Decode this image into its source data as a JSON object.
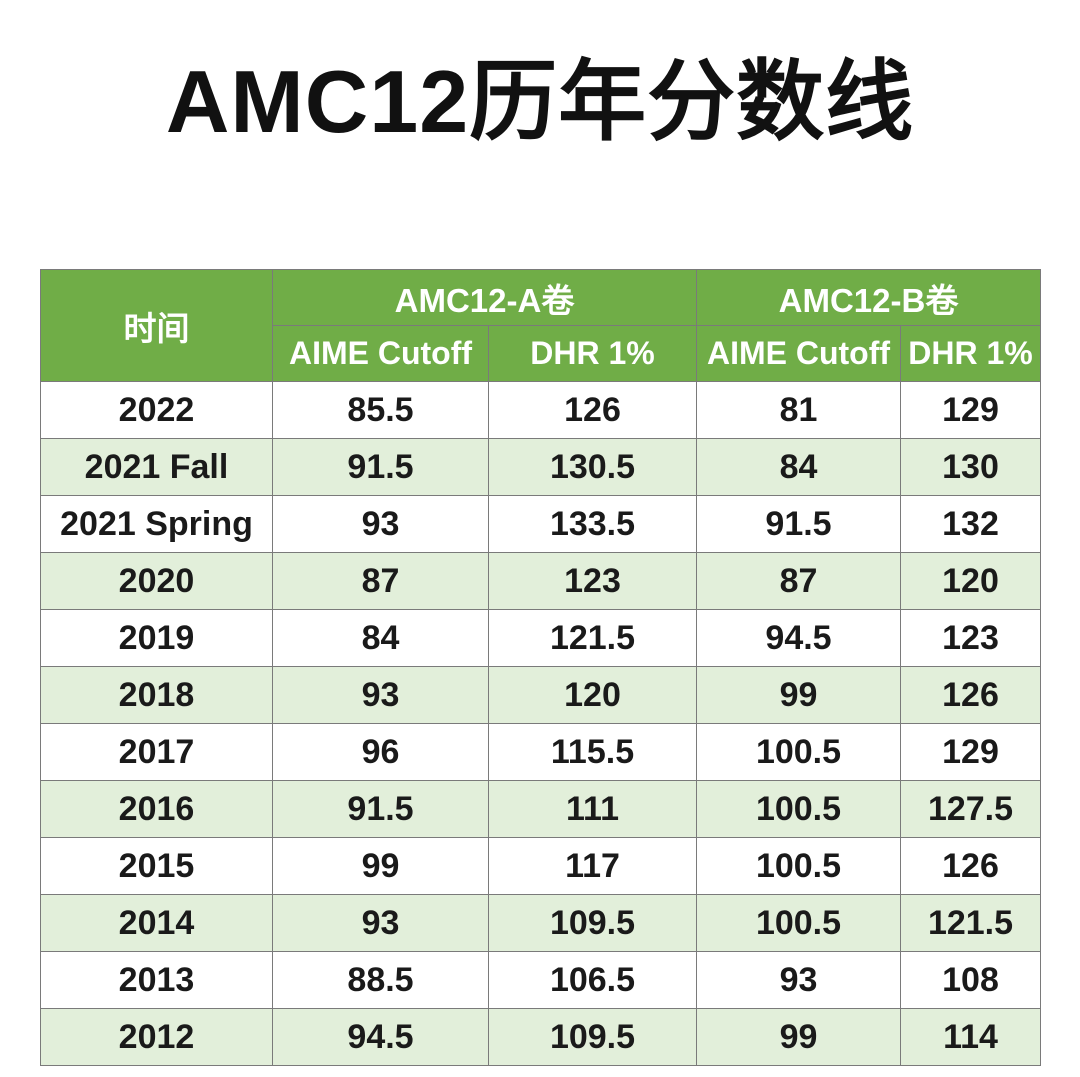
{
  "title": "AMC12历年分数线",
  "table": {
    "time_header": "时间",
    "group_a": "AMC12-A卷",
    "group_b": "AMC12-B卷",
    "sub_headers": [
      "AIME Cutoff",
      "DHR 1%",
      "AIME Cutoff",
      "DHR 1%"
    ],
    "rows": [
      [
        "2022",
        "85.5",
        "126",
        "81",
        "129"
      ],
      [
        "2021 Fall",
        "91.5",
        "130.5",
        "84",
        "130"
      ],
      [
        "2021 Spring",
        "93",
        "133.5",
        "91.5",
        "132"
      ],
      [
        "2020",
        "87",
        "123",
        "87",
        "120"
      ],
      [
        "2019",
        "84",
        "121.5",
        "94.5",
        "123"
      ],
      [
        "2018",
        "93",
        "120",
        "99",
        "126"
      ],
      [
        "2017",
        "96",
        "115.5",
        "100.5",
        "129"
      ],
      [
        "2016",
        "91.5",
        "111",
        "100.5",
        "127.5"
      ],
      [
        "2015",
        "99",
        "117",
        "100.5",
        "126"
      ],
      [
        "2014",
        "93",
        "109.5",
        "100.5",
        "121.5"
      ],
      [
        "2013",
        "88.5",
        "106.5",
        "93",
        "108"
      ],
      [
        "2012",
        "94.5",
        "109.5",
        "99",
        "114"
      ]
    ]
  },
  "colors": {
    "header_green": "#70ad47",
    "stripe_green": "#e2efda"
  }
}
